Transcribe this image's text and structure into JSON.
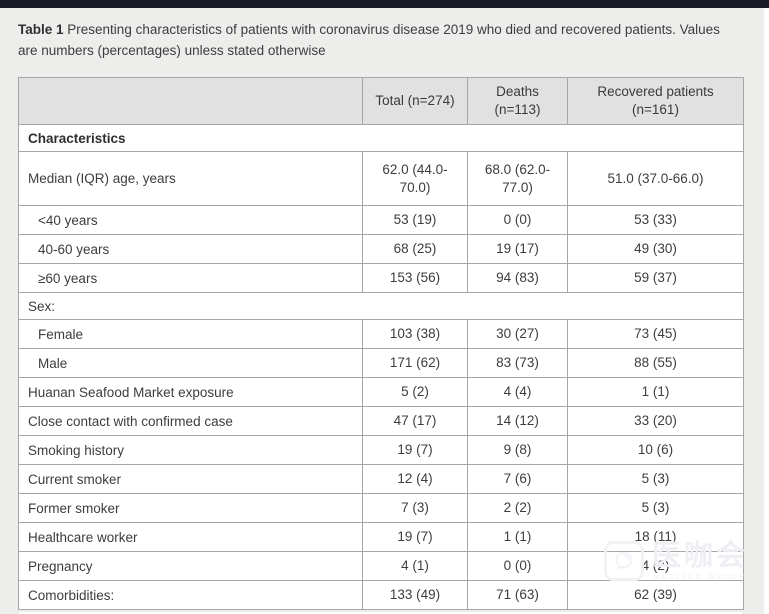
{
  "page": {
    "topbar_color": "#1b1b28",
    "background_color": "#ededec"
  },
  "caption": {
    "label": "Table 1",
    "text": " Presenting characteristics of patients with coronavirus disease 2019 who died and recovered patients. Values are numbers (percentages) unless stated otherwise"
  },
  "table": {
    "header": {
      "blank": "",
      "total": "Total (n=274)",
      "deaths_line1": "Deaths",
      "deaths_line2": "(n=113)",
      "recovered_line1": "Recovered patients",
      "recovered_line2": "(n=161)"
    },
    "rows": [
      {
        "label": "Characteristics",
        "type": "section",
        "bold": true
      },
      {
        "label": "Median (IQR) age, years",
        "type": "data",
        "tall": true,
        "indent": false,
        "total": "62.0 (44.0-70.0)",
        "deaths": "68.0 (62.0-77.0)",
        "recovered": "51.0 (37.0-66.0)"
      },
      {
        "label": "<40 years",
        "type": "data",
        "indent": true,
        "total": "53 (19)",
        "deaths": "0 (0)",
        "recovered": "53 (33)"
      },
      {
        "label": "40-60 years",
        "type": "data",
        "indent": true,
        "total": "68 (25)",
        "deaths": "19 (17)",
        "recovered": "49 (30)"
      },
      {
        "label": "≥60 years",
        "type": "data",
        "indent": true,
        "total": "153 (56)",
        "deaths": "94 (83)",
        "recovered": "59 (37)"
      },
      {
        "label": "Sex:",
        "type": "section",
        "bold": false
      },
      {
        "label": "Female",
        "type": "data",
        "indent": true,
        "total": "103 (38)",
        "deaths": "30 (27)",
        "recovered": "73 (45)"
      },
      {
        "label": "Male",
        "type": "data",
        "indent": true,
        "total": "171 (62)",
        "deaths": "83 (73)",
        "recovered": "88 (55)"
      },
      {
        "label": "Huanan Seafood Market exposure",
        "type": "data",
        "indent": false,
        "total": "5 (2)",
        "deaths": "4 (4)",
        "recovered": "1 (1)"
      },
      {
        "label": "Close contact with confirmed case",
        "type": "data",
        "indent": false,
        "total": "47 (17)",
        "deaths": "14 (12)",
        "recovered": "33 (20)"
      },
      {
        "label": "Smoking history",
        "type": "data",
        "indent": false,
        "total": "19 (7)",
        "deaths": "9 (8)",
        "recovered": "10 (6)"
      },
      {
        "label": "Current smoker",
        "type": "data",
        "indent": false,
        "total": "12 (4)",
        "deaths": "7 (6)",
        "recovered": "5 (3)"
      },
      {
        "label": "Former smoker",
        "type": "data",
        "indent": false,
        "total": "7 (3)",
        "deaths": "2 (2)",
        "recovered": "5 (3)"
      },
      {
        "label": "Healthcare worker",
        "type": "data",
        "indent": false,
        "total": "19 (7)",
        "deaths": "1 (1)",
        "recovered": "18 (11)"
      },
      {
        "label": "Pregnancy",
        "type": "data",
        "indent": false,
        "total": "4 (1)",
        "deaths": "0 (0)",
        "recovered": "4 (2)"
      },
      {
        "label": "Comorbidities:",
        "type": "data",
        "indent": false,
        "total": "133 (49)",
        "deaths": "71 (63)",
        "recovered": "62 (39)"
      }
    ]
  },
  "watermark": {
    "logo": "chat-bubble-logo",
    "cn_text": "医咖会",
    "sub_text": "MEDIECO GROUP"
  }
}
